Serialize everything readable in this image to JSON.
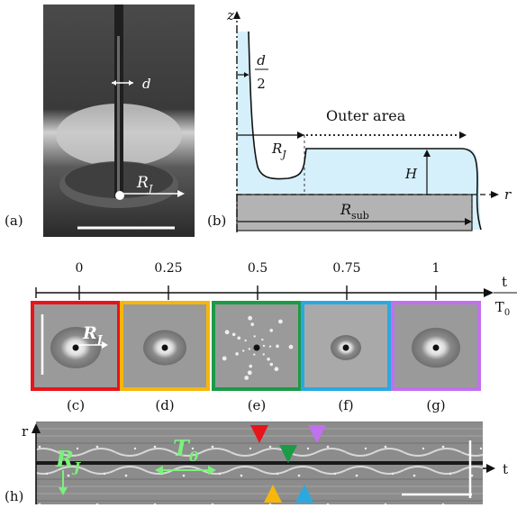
{
  "figure": {
    "panel_labels": [
      "(a)",
      "(b)",
      "(c)",
      "(d)",
      "(e)",
      "(f)",
      "(g)",
      "(h)"
    ],
    "panel_a": {
      "d_label": "d",
      "rj_label": "R",
      "rj_sub": "J"
    },
    "panel_b": {
      "z_axis": "z",
      "r_axis": "r",
      "half_d_num": "d",
      "half_d_den": "2",
      "outer_area": "Outer area",
      "rj_label": "R",
      "rj_sub": "J",
      "h_label": "H",
      "rsub_label": "R",
      "rsub_sub": "sub"
    },
    "timeline": {
      "ticks": [
        "0",
        "0.25",
        "0.5",
        "0.75",
        "1"
      ],
      "axis_num": "t",
      "axis_den": "T",
      "axis_den_sub": "0",
      "frame_colors": [
        "#e8141b",
        "#f5b70c",
        "#1c9a46",
        "#2aa9e0",
        "#c170ee"
      ],
      "frame_labels": [
        "(c)",
        "(d)",
        "(e)",
        "(f)",
        "(g)"
      ],
      "rj_label": "R",
      "rj_sub": "J"
    },
    "panel_h": {
      "r_axis": "r",
      "t_axis": "t",
      "rj_label": "R",
      "rj_sub": "J",
      "t0_label": "T",
      "t0_sub": "0",
      "annotation_color": "#7cf07c",
      "marker_colors_top": [
        "#e8141b",
        "#1c9a46",
        "#c170ee"
      ],
      "marker_colors_bottom": [
        "#f5b70c",
        "#2aa9e0"
      ]
    }
  }
}
